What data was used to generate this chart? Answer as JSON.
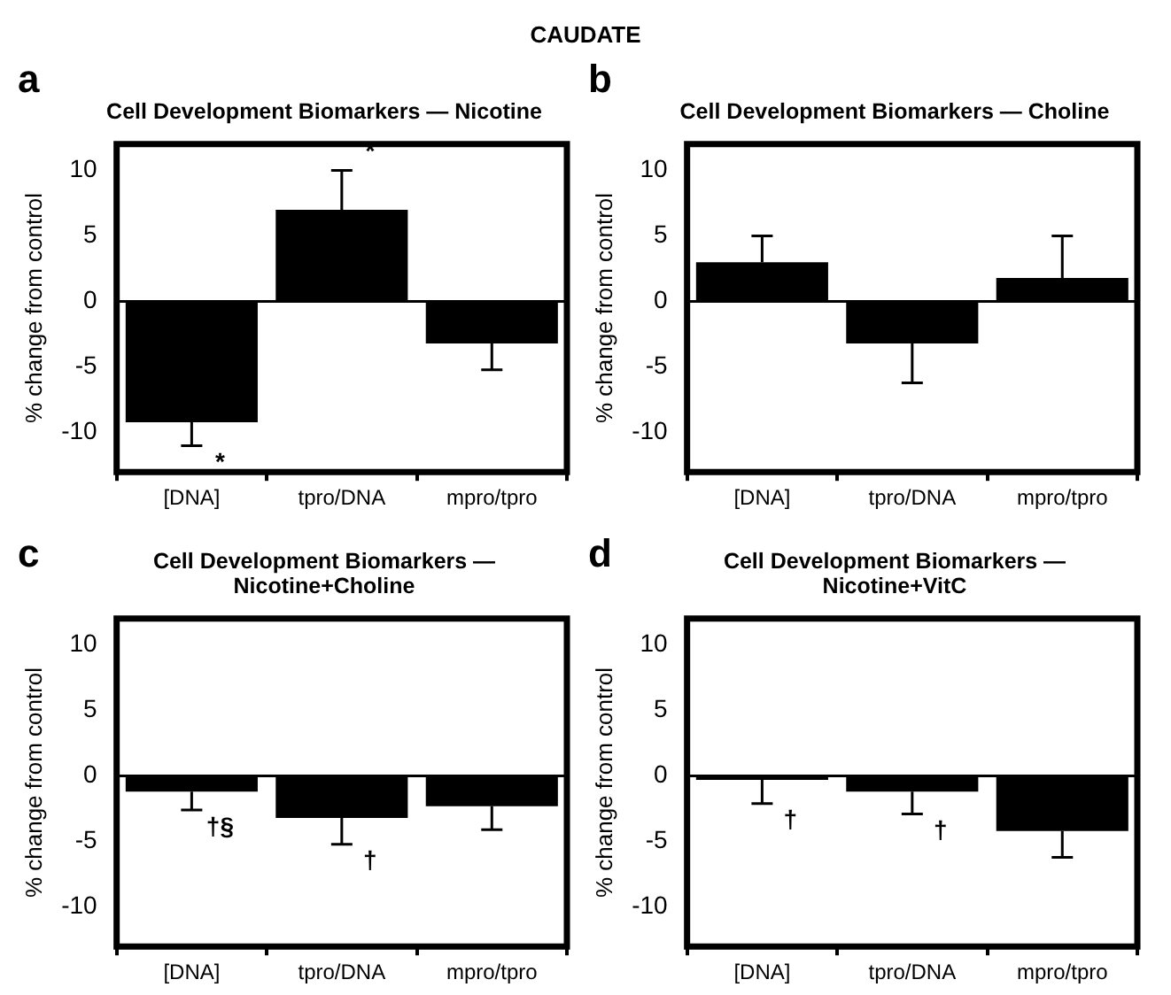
{
  "chart_data": [
    {
      "type": "bar",
      "title": "Cell Development Biomarkers — Nicotine",
      "ylabel": "% change from control",
      "categories": [
        "[DNA]",
        "tpro/DNA",
        "mpro/tpro"
      ],
      "values": [
        -9.2,
        7,
        -3.2
      ],
      "errors": [
        1.8,
        3,
        2
      ],
      "color": "#000000",
      "ylim": [
        -13,
        12
      ],
      "yticks": [
        -10,
        -5,
        0,
        5,
        10
      ],
      "grid": false,
      "ref_lines": [
        {
          "axis": "y",
          "value": 0
        }
      ],
      "annotations": [
        "CAUDATE",
        "a",
        {
          "text": "*",
          "x": "[DNA]",
          "y": -11
        },
        {
          "text": "*",
          "x": "tpro/DNA",
          "y": 10
        }
      ]
    },
    {
      "type": "bar",
      "title": "Cell Development Biomarkers — Choline",
      "ylabel": "% change from control",
      "categories": [
        "[DNA]",
        "tpro/DNA",
        "mpro/tpro"
      ],
      "values": [
        3,
        -3.2,
        1.8
      ],
      "errors": [
        2,
        3,
        3.2
      ],
      "color": "#000000",
      "ylim": [
        -13,
        12
      ],
      "yticks": [
        -10,
        -5,
        0,
        5,
        10
      ],
      "grid": false,
      "ref_lines": [
        {
          "axis": "y",
          "value": 0
        }
      ],
      "annotations": [
        "b"
      ]
    },
    {
      "type": "bar",
      "title": "Cell Development Biomarkers — Nicotine+Choline",
      "ylabel": "% change from control",
      "categories": [
        "[DNA]",
        "tpro/DNA",
        "mpro/tpro"
      ],
      "values": [
        -1.2,
        -3.2,
        -2.3
      ],
      "errors": [
        1.4,
        2,
        1.8
      ],
      "color": "#000000",
      "ylim": [
        -13,
        12
      ],
      "yticks": [
        -10,
        -5,
        0,
        5,
        10
      ],
      "grid": false,
      "ref_lines": [
        {
          "axis": "y",
          "value": 0
        }
      ],
      "annotations": [
        "c",
        {
          "text": "†§",
          "x": "[DNA]",
          "y": -2.6
        },
        {
          "text": "†",
          "x": "tpro/DNA",
          "y": -5.2
        }
      ]
    },
    {
      "type": "bar",
      "title": "Cell Development Biomarkers — Nicotine+VitC",
      "ylabel": "% change from control",
      "categories": [
        "[DNA]",
        "tpro/DNA",
        "mpro/tpro"
      ],
      "values": [
        -0.3,
        -1.2,
        -4.2
      ],
      "errors": [
        1.8,
        1.7,
        2
      ],
      "color": "#000000",
      "ylim": [
        -13,
        12
      ],
      "yticks": [
        -10,
        -5,
        0,
        5,
        10
      ],
      "grid": false,
      "ref_lines": [
        {
          "axis": "y",
          "value": 0
        }
      ],
      "annotations": [
        "d",
        {
          "text": "†",
          "x": "[DNA]",
          "y": -2.1
        },
        {
          "text": "†",
          "x": "tpro/DNA",
          "y": -2.9
        }
      ]
    }
  ]
}
